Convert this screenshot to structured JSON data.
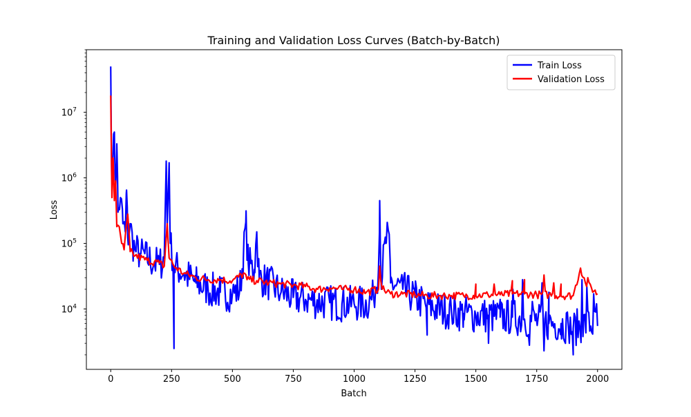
{
  "chart_data": {
    "type": "line",
    "title": "Training and Validation Loss Curves (Batch-by-Batch)",
    "xlabel": "Batch",
    "ylabel": "Loss",
    "xlim": [
      -100,
      2100
    ],
    "ylim": [
      1200,
      90000000
    ],
    "yscale": "log",
    "grid": false,
    "legend_position": "top-right",
    "x_ticks": [
      0,
      250,
      500,
      750,
      1000,
      1250,
      1500,
      1750,
      2000
    ],
    "x_tick_labels": [
      "0",
      "250",
      "500",
      "750",
      "1000",
      "1250",
      "1500",
      "1750",
      "2000"
    ],
    "y_ticks": [
      10000,
      100000,
      1000000,
      10000000
    ],
    "y_tick_labels": [
      {
        "base": "10",
        "exp": "4"
      },
      {
        "base": "10",
        "exp": "5"
      },
      {
        "base": "10",
        "exp": "6"
      },
      {
        "base": "10",
        "exp": "7"
      }
    ],
    "series": [
      {
        "name": "Train Loss",
        "color": "#0000ff",
        "anchors": [
          [
            0,
            50000000
          ],
          [
            3,
            2000000
          ],
          [
            8,
            1200000
          ],
          [
            15,
            5000000
          ],
          [
            20,
            700000
          ],
          [
            25,
            3300000
          ],
          [
            30,
            300000
          ],
          [
            40,
            500000
          ],
          [
            50,
            200000
          ],
          [
            60,
            150000
          ],
          [
            65,
            650000
          ],
          [
            70,
            120000
          ],
          [
            80,
            200000
          ],
          [
            90,
            100000
          ],
          [
            100,
            80000
          ],
          [
            120,
            70000
          ],
          [
            150,
            60000
          ],
          [
            180,
            50000
          ],
          [
            200,
            48000
          ],
          [
            220,
            60000
          ],
          [
            228,
            1800000
          ],
          [
            232,
            200000
          ],
          [
            240,
            1700000
          ],
          [
            245,
            100000
          ],
          [
            260,
            45000
          ],
          [
            300,
            35000
          ],
          [
            350,
            25000
          ],
          [
            400,
            20000
          ],
          [
            450,
            18000
          ],
          [
            500,
            17000
          ],
          [
            530,
            20000
          ],
          [
            545,
            60000
          ],
          [
            555,
            210000
          ],
          [
            565,
            50000
          ],
          [
            590,
            40000
          ],
          [
            600,
            150000
          ],
          [
            610,
            30000
          ],
          [
            650,
            25000
          ],
          [
            700,
            18000
          ],
          [
            750,
            15000
          ],
          [
            800,
            14000
          ],
          [
            850,
            13000
          ],
          [
            900,
            12500
          ],
          [
            950,
            12000
          ],
          [
            1000,
            12000
          ],
          [
            1050,
            12000
          ],
          [
            1080,
            15000
          ],
          [
            1100,
            40000
          ],
          [
            1105,
            450000
          ],
          [
            1110,
            30000
          ],
          [
            1130,
            100000
          ],
          [
            1140,
            160000
          ],
          [
            1150,
            25000
          ],
          [
            1200,
            20000
          ],
          [
            1250,
            15000
          ],
          [
            1300,
            11000
          ],
          [
            1350,
            10000
          ],
          [
            1400,
            9000
          ],
          [
            1450,
            8500
          ],
          [
            1500,
            8000
          ],
          [
            1550,
            8000
          ],
          [
            1600,
            7500
          ],
          [
            1650,
            7500
          ],
          [
            1700,
            7000
          ],
          [
            1750,
            6500
          ],
          [
            1800,
            6000
          ],
          [
            1850,
            6000
          ],
          [
            1880,
            5500
          ],
          [
            1900,
            5000
          ],
          [
            1950,
            6000
          ],
          [
            2000,
            5500
          ]
        ],
        "spikes": [
          [
            1600,
            14000
          ],
          [
            1650,
            20000
          ],
          [
            1690,
            28000
          ],
          [
            1730,
            13000
          ],
          [
            1770,
            25000
          ],
          [
            1800,
            18000
          ],
          [
            1935,
            28000
          ],
          [
            1955,
            22000
          ],
          [
            1985,
            17000
          ],
          [
            1997,
            12000
          ],
          [
            260,
            2500
          ],
          [
            1780,
            2300
          ],
          [
            1900,
            2000
          ],
          [
            1720,
            2800
          ],
          [
            1550,
            3000
          ],
          [
            1300,
            4000
          ],
          [
            1850,
            3500
          ]
        ]
      },
      {
        "name": "Validation Loss",
        "color": "#ff0000",
        "anchors": [
          [
            0,
            18000000
          ],
          [
            5,
            500000
          ],
          [
            10,
            2000000
          ],
          [
            15,
            450000
          ],
          [
            20,
            900000
          ],
          [
            25,
            180000
          ],
          [
            35,
            180000
          ],
          [
            45,
            100000
          ],
          [
            55,
            80000
          ],
          [
            70,
            280000
          ],
          [
            80,
            75000
          ],
          [
            100,
            65000
          ],
          [
            150,
            55000
          ],
          [
            200,
            50000
          ],
          [
            220,
            45000
          ],
          [
            232,
            200000
          ],
          [
            240,
            60000
          ],
          [
            260,
            45000
          ],
          [
            300,
            35000
          ],
          [
            350,
            30000
          ],
          [
            400,
            28000
          ],
          [
            450,
            28000
          ],
          [
            500,
            27000
          ],
          [
            550,
            35000
          ],
          [
            560,
            28000
          ],
          [
            600,
            27000
          ],
          [
            650,
            25000
          ],
          [
            700,
            24000
          ],
          [
            750,
            23000
          ],
          [
            800,
            22000
          ],
          [
            850,
            20000
          ],
          [
            900,
            21000
          ],
          [
            950,
            20000
          ],
          [
            1000,
            20000
          ],
          [
            1050,
            18000
          ],
          [
            1100,
            20000
          ],
          [
            1105,
            45000
          ],
          [
            1115,
            20000
          ],
          [
            1150,
            17000
          ],
          [
            1200,
            17000
          ],
          [
            1250,
            16500
          ],
          [
            1300,
            16000
          ],
          [
            1350,
            16000
          ],
          [
            1400,
            16000
          ],
          [
            1450,
            16000
          ],
          [
            1500,
            16000
          ],
          [
            1550,
            16500
          ],
          [
            1600,
            16500
          ],
          [
            1650,
            17000
          ],
          [
            1700,
            17000
          ],
          [
            1750,
            16500
          ],
          [
            1800,
            16500
          ],
          [
            1850,
            16000
          ],
          [
            1900,
            16000
          ],
          [
            1930,
            42000
          ],
          [
            1950,
            25000
          ],
          [
            2000,
            17000
          ]
        ],
        "spikes": [
          [
            1650,
            27000
          ],
          [
            1700,
            28000
          ],
          [
            1780,
            33000
          ],
          [
            1820,
            25000
          ],
          [
            1575,
            24000
          ],
          [
            1500,
            24000
          ],
          [
            1850,
            24000
          ],
          [
            1960,
            30000
          ]
        ]
      }
    ]
  }
}
